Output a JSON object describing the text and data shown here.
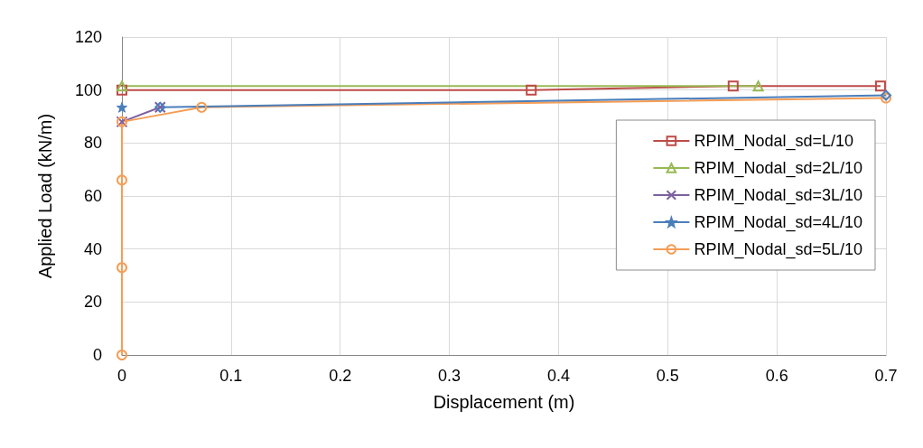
{
  "chart_data": {
    "type": "line",
    "xlabel": "Displacement (m)",
    "ylabel": "Applied Load (kN/m)",
    "xlim": [
      0,
      0.7
    ],
    "xticks": [
      0,
      0.1,
      0.2,
      0.3,
      0.4,
      0.5,
      0.6,
      0.7
    ],
    "ylim": [
      0,
      120
    ],
    "yticks": [
      0,
      20,
      40,
      60,
      80,
      100,
      120
    ],
    "grid": true,
    "legend": "right",
    "line_style": "solid",
    "series": [
      {
        "name": "RPIM_Nodal_sd=L/10",
        "color": "#be4b48",
        "marker": "square",
        "x": [
          0,
          0.375,
          0.56,
          0.695
        ],
        "values": [
          100,
          100,
          101.5,
          101.5
        ]
      },
      {
        "name": "RPIM_Nodal_sd=2L/10",
        "color": "#98b954",
        "marker": "triangle",
        "x": [
          0,
          0.583
        ],
        "values": [
          101.5,
          101.5
        ]
      },
      {
        "name": "RPIM_Nodal_sd=3L/10",
        "color": "#7d60a0",
        "marker": "cross",
        "x": [
          0,
          0.035
        ],
        "values": [
          88,
          93.5
        ]
      },
      {
        "name": "RPIM_Nodal_sd=4L/10",
        "color": "#4a7ebb",
        "marker": "star",
        "x": [
          0
        ],
        "values": [
          93.5
        ]
      },
      {
        "name": "RPIM_Nodal_sd=5L/10",
        "color": "#f59d56",
        "marker": "circle",
        "x": [
          0,
          0,
          0,
          0,
          0.073,
          0.7
        ],
        "values": [
          0,
          33,
          66,
          88,
          93.5,
          97
        ]
      },
      {
        "color": "#4a7ebb",
        "marker": "diamond",
        "x": [
          0.035,
          0.7
        ],
        "values": [
          93.5,
          98
        ]
      }
    ]
  }
}
